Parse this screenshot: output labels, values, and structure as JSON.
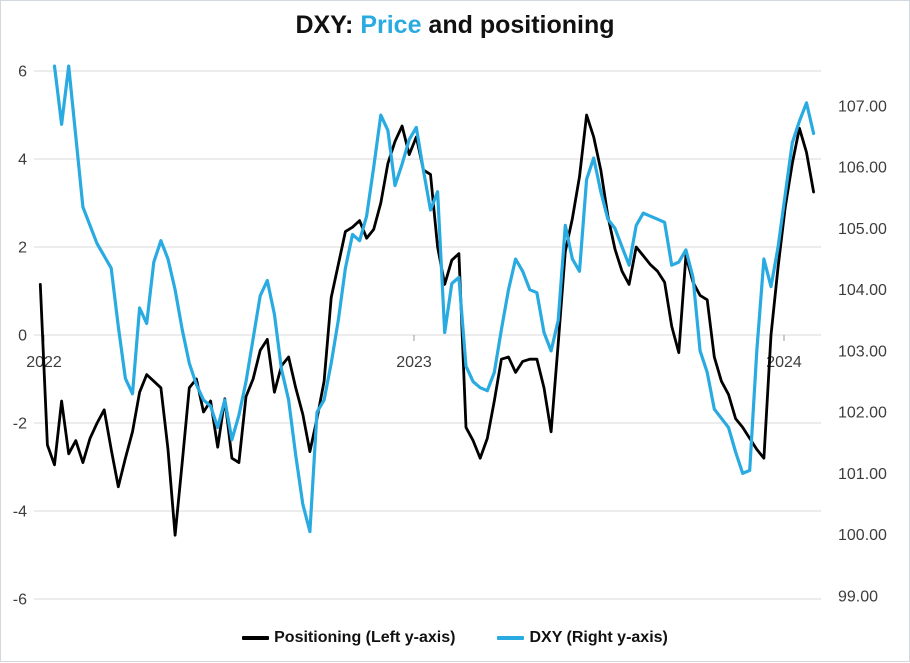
{
  "title": {
    "prefix": "DXY: ",
    "highlight": "Price",
    "suffix": " and positioning"
  },
  "colors": {
    "accent": "#29abe2",
    "positioning_line": "#000000",
    "dxy_line": "#29abe2",
    "grid": "#d9d9d9",
    "axis_text": "#3d3d3d",
    "frame_border": "#d3d7de"
  },
  "legend": {
    "items": [
      {
        "key": "positioning",
        "label": "Positioning (Left y-axis)",
        "color": "#000000"
      },
      {
        "key": "dxy",
        "label": "DXY (Right y-axis)",
        "color": "#29abe2"
      }
    ]
  },
  "chart_data": {
    "type": "line",
    "title": "DXY: Price and positioning",
    "grid": "horizontal",
    "legend_position": "bottom",
    "x_axis": {
      "tick_labels": [
        "2022",
        "2023",
        "2024"
      ],
      "tick_years": [
        2022,
        2023,
        2024
      ],
      "series_x_start_year": 2021.99,
      "series_x_end_year": 2024.08,
      "point_spacing": "weekly, evenly spaced"
    },
    "left_axis": {
      "tick_labels": [
        "6",
        "4",
        "2",
        "0",
        "-2",
        "-4",
        "-6"
      ],
      "tick_values": [
        6,
        4,
        2,
        0,
        -2,
        -4,
        -6
      ],
      "range": [
        -6,
        6
      ]
    },
    "right_axis": {
      "tick_labels": [
        "107.00",
        "106.00",
        "105.00",
        "104.00",
        "103.00",
        "102.00",
        "101.00",
        "100.00",
        "99.00"
      ],
      "tick_values": [
        107,
        106,
        105,
        104,
        103,
        102,
        101,
        100,
        99
      ],
      "range": [
        98.95,
        107.57
      ]
    },
    "series": [
      {
        "key": "positioning",
        "name": "Positioning (Left y-axis)",
        "axis": "left",
        "color": "#000000",
        "values": [
          1.15,
          -2.5,
          -2.95,
          -1.5,
          -2.7,
          -2.4,
          -2.9,
          -2.35,
          -2.0,
          -1.7,
          -2.6,
          -3.45,
          -2.8,
          -2.2,
          -1.3,
          -0.9,
          -1.05,
          -1.2,
          -2.6,
          -4.55,
          -2.9,
          -1.2,
          -1.0,
          -1.75,
          -1.5,
          -2.55,
          -1.45,
          -2.8,
          -2.9,
          -1.4,
          -1.0,
          -0.35,
          -0.1,
          -1.3,
          -0.7,
          -0.5,
          -1.2,
          -1.8,
          -2.65,
          -1.9,
          -1.05,
          0.85,
          1.6,
          2.35,
          2.45,
          2.6,
          2.2,
          2.4,
          3.0,
          3.9,
          4.4,
          4.75,
          4.1,
          4.5,
          3.75,
          3.65,
          2.0,
          1.15,
          1.7,
          1.85,
          -2.1,
          -2.4,
          -2.8,
          -2.35,
          -1.5,
          -0.55,
          -0.5,
          -0.85,
          -0.6,
          -0.55,
          -0.55,
          -1.2,
          -2.2,
          -0.2,
          1.9,
          2.65,
          3.6,
          5.0,
          4.5,
          3.75,
          2.7,
          1.95,
          1.45,
          1.15,
          2.0,
          1.8,
          1.6,
          1.45,
          1.2,
          0.2,
          -0.4,
          1.8,
          1.2,
          0.9,
          0.8,
          -0.5,
          -1.05,
          -1.35,
          -1.9,
          -2.1,
          -2.35,
          -2.6,
          -2.8,
          0.0,
          1.55,
          2.9,
          3.9,
          4.7,
          4.15,
          3.25
        ]
      },
      {
        "key": "dxy",
        "name": "DXY (Right y-axis)",
        "axis": "right",
        "color": "#29abe2",
        "values": [
          null,
          null,
          107.65,
          106.7,
          107.65,
          106.5,
          105.35,
          105.05,
          104.75,
          104.55,
          104.35,
          103.4,
          102.55,
          102.3,
          103.7,
          103.45,
          104.45,
          104.8,
          104.5,
          104.0,
          103.35,
          102.8,
          102.45,
          102.2,
          102.1,
          101.75,
          102.2,
          101.55,
          101.95,
          102.5,
          103.2,
          103.9,
          104.15,
          103.6,
          102.7,
          102.2,
          101.3,
          100.5,
          100.05,
          102.0,
          102.2,
          102.8,
          103.5,
          104.35,
          104.9,
          104.8,
          105.2,
          106.0,
          106.85,
          106.6,
          105.7,
          106.05,
          106.45,
          106.65,
          105.95,
          105.3,
          105.6,
          103.3,
          104.1,
          104.2,
          102.75,
          102.5,
          102.4,
          102.35,
          102.65,
          103.35,
          104.0,
          104.5,
          104.3,
          104.0,
          103.95,
          103.3,
          103.0,
          103.5,
          105.05,
          104.5,
          104.3,
          105.8,
          106.15,
          105.6,
          105.15,
          105.0,
          104.7,
          104.4,
          105.05,
          105.25,
          105.2,
          105.15,
          105.1,
          104.4,
          104.45,
          104.65,
          104.2,
          103.0,
          102.65,
          102.05,
          101.9,
          101.75,
          101.35,
          101.0,
          101.05,
          103.0,
          104.5,
          104.05,
          104.7,
          105.55,
          106.4,
          106.75,
          107.05,
          106.55
        ]
      }
    ]
  }
}
